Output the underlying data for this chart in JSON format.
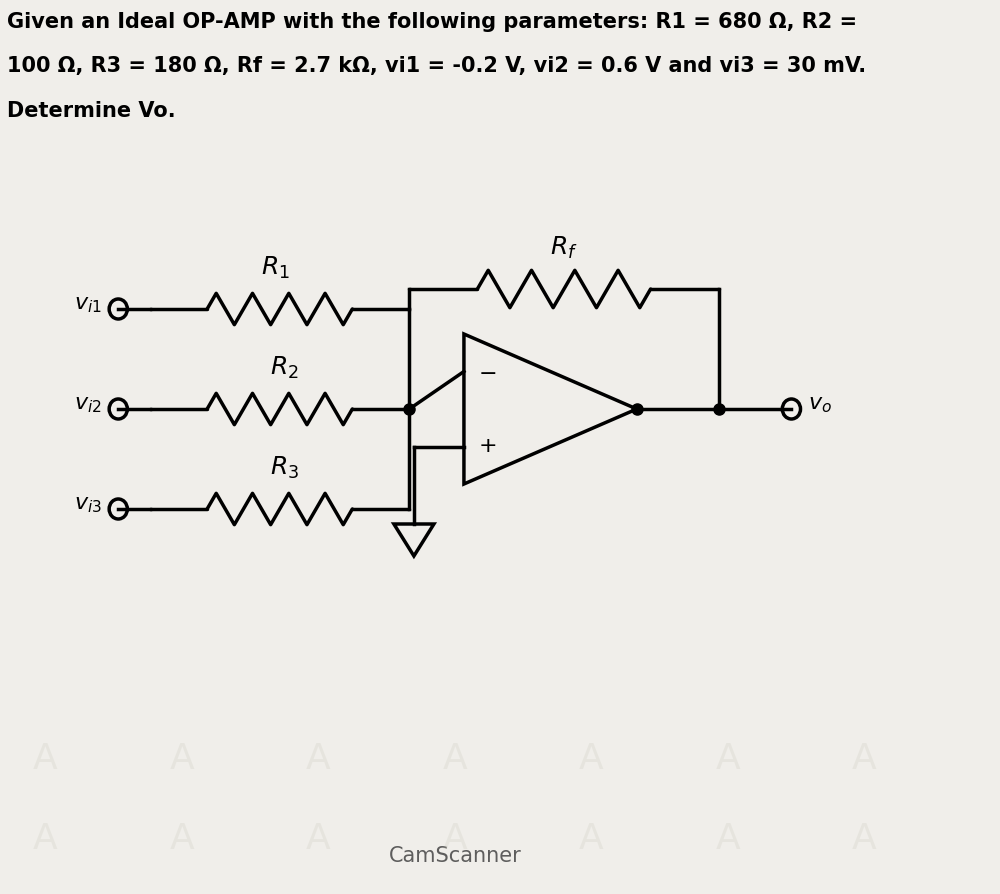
{
  "title_line1": "Given an Ideal OP-AMP with the following parameters: R1 = 680 Ω, R2 =",
  "title_line2": "100 Ω, R3 = 180 Ω, Rf = 2.7 kΩ, vi1 = -0.2 V, vi2 = 0.6 V and vi3 = 30 mV.",
  "title_line3": "Determine Vo.",
  "background_color": "#f0eeea",
  "circuit_color": "#000000",
  "text_color": "#000000",
  "watermark": "CamScanner",
  "lw": 2.5
}
